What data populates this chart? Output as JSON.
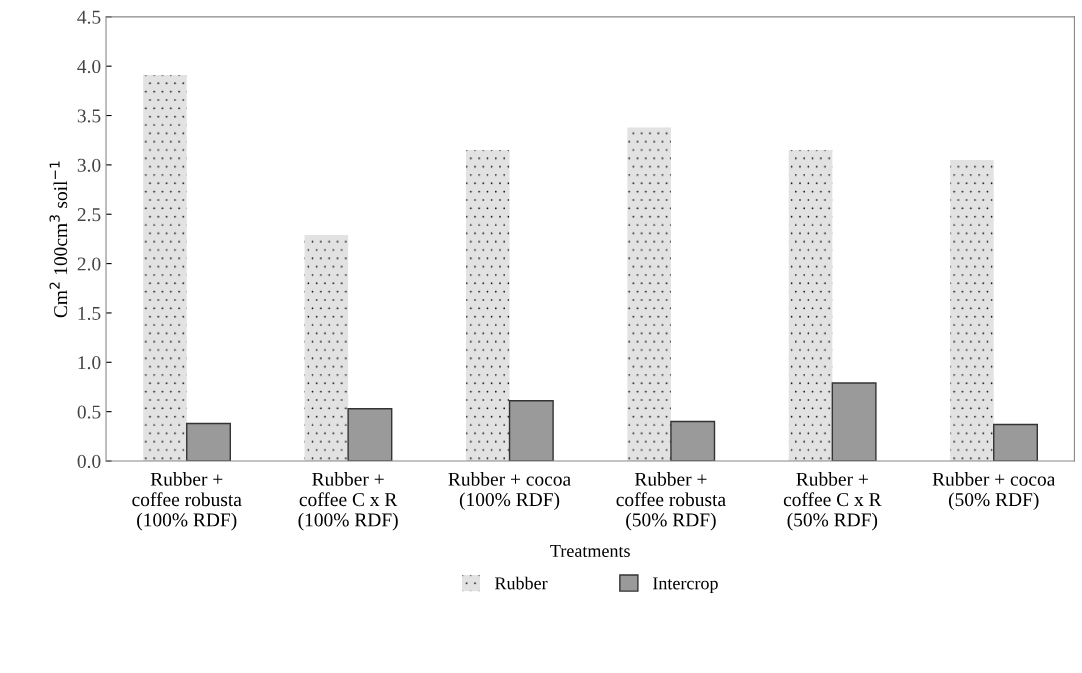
{
  "chart_data": {
    "type": "bar",
    "xlabel": "Treatments",
    "ylabel": "Cm$^{2}$ 100cm$^{3}$ soil$^{−1}$",
    "categories": [
      "Rubber +\ncoffee robusta\n(100% RDF)",
      "Rubber +\ncoffee C x R\n(100% RDF)",
      "Rubber + cocoa\n(100% RDF)",
      "Rubber +\ncoffee robusta\n(50% RDF)",
      "Rubber +\ncoffee C x R\n(50% RDF)",
      "Rubber + cocoa\n(50% RDF)"
    ],
    "series": [
      {
        "name": "Rubber",
        "color": "#e2e2e2",
        "values": [
          3.91,
          2.29,
          3.15,
          3.38,
          3.15,
          3.05
        ]
      },
      {
        "name": "Intercrop",
        "color": "#9a9a9a",
        "values": [
          0.38,
          0.53,
          0.61,
          0.4,
          0.79,
          0.37
        ]
      }
    ],
    "ylim": [
      0,
      4.5
    ],
    "yticks": [
      {
        "value": 0,
        "label": "0.0"
      },
      0.5,
      {
        "value": 1,
        "label": "1.0"
      },
      1.5,
      {
        "value": 2,
        "label": "2.0"
      },
      2.5,
      {
        "value": 3,
        "label": "3.0"
      },
      3.5,
      {
        "value": 4,
        "label": "4.0"
      },
      4.5
    ],
    "legend": "bottom",
    "grid": false
  }
}
